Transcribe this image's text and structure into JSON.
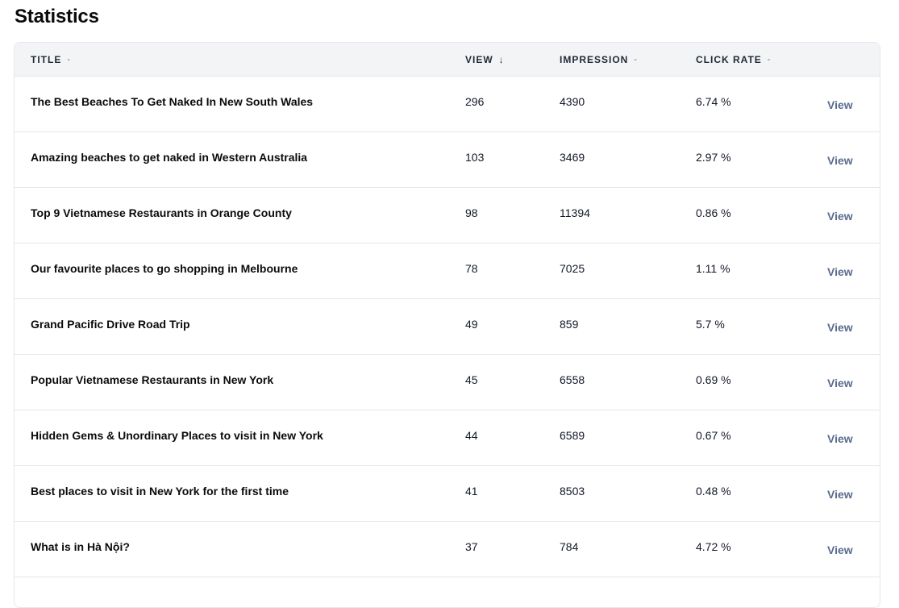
{
  "page": {
    "title": "Statistics"
  },
  "columns": {
    "title": {
      "label": "TITLE",
      "sort": "-"
    },
    "view": {
      "label": "VIEW",
      "sort": "↓"
    },
    "impression": {
      "label": "IMPRESSION",
      "sort": "-"
    },
    "click_rate": {
      "label": "CLICK RATE",
      "sort": "-"
    }
  },
  "rows": [
    {
      "title": "The Best Beaches To Get Naked In New South Wales",
      "view": "296",
      "impression": "4390",
      "click_rate": "6.74 %",
      "action": "View"
    },
    {
      "title": "Amazing beaches to get naked in Western Australia",
      "view": "103",
      "impression": "3469",
      "click_rate": "2.97 %",
      "action": "View"
    },
    {
      "title": "Top 9 Vietnamese Restaurants in Orange County",
      "view": "98",
      "impression": "11394",
      "click_rate": "0.86 %",
      "action": "View"
    },
    {
      "title": "Our favourite places to go shopping in Melbourne",
      "view": "78",
      "impression": "7025",
      "click_rate": "1.11 %",
      "action": "View"
    },
    {
      "title": "Grand Pacific Drive Road Trip",
      "view": "49",
      "impression": "859",
      "click_rate": "5.7 %",
      "action": "View"
    },
    {
      "title": "Popular Vietnamese Restaurants in New York",
      "view": "45",
      "impression": "6558",
      "click_rate": "0.69 %",
      "action": "View"
    },
    {
      "title": "Hidden Gems & Unordinary Places to visit in New York",
      "view": "44",
      "impression": "6589",
      "click_rate": "0.67 %",
      "action": "View"
    },
    {
      "title": "Best places to visit in New York for the first time",
      "view": "41",
      "impression": "8503",
      "click_rate": "0.48 %",
      "action": "View"
    },
    {
      "title": "What is in Hà Nội?",
      "view": "37",
      "impression": "784",
      "click_rate": "4.72 %",
      "action": "View"
    }
  ],
  "colors": {
    "header_bg": "#f3f4f6",
    "border": "#e5e7eb",
    "link": "#5a6b8c"
  }
}
